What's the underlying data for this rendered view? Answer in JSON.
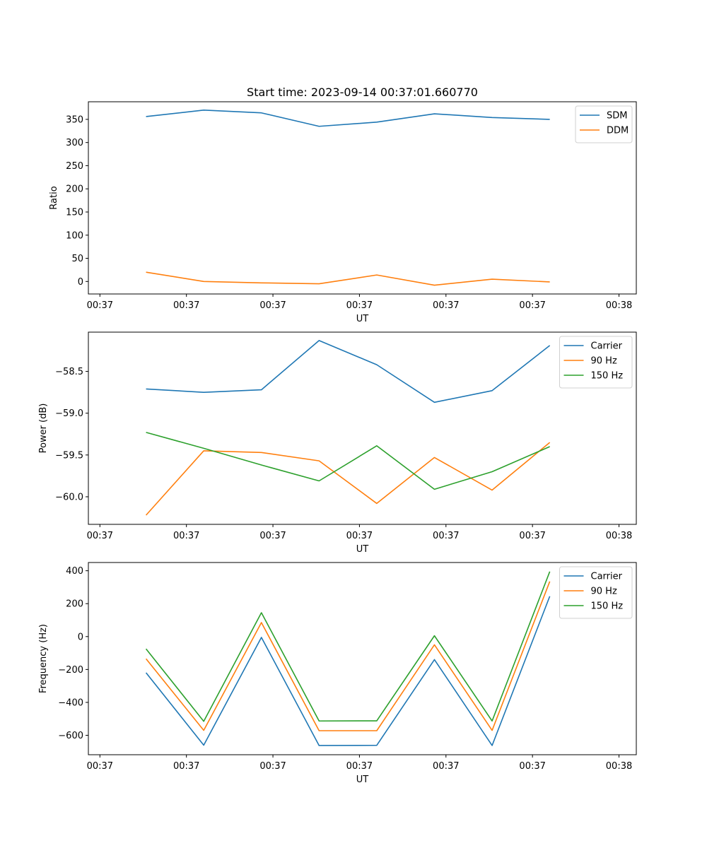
{
  "title": "Start time: 2023-09-14 00:37:01.660770",
  "colors": {
    "blue": "#1f77b4",
    "orange": "#ff7f0e",
    "green": "#2ca02c"
  },
  "chart_data": [
    {
      "type": "line",
      "title": "Start time: 2023-09-14 00:37:01.660770",
      "xlabel": "UT",
      "ylabel": "Ratio",
      "x": [
        1,
        2,
        3,
        4,
        5,
        6,
        7,
        8
      ],
      "xlim": [
        0,
        9.5
      ],
      "xticks": [
        0.2,
        1.7,
        3.2,
        4.7,
        6.2,
        7.7,
        9.2
      ],
      "xtick_labels": [
        "00:37",
        "00:37",
        "00:37",
        "00:37",
        "00:37",
        "00:37",
        "00:38"
      ],
      "ylim": [
        -27,
        388
      ],
      "yticks": [
        0,
        50,
        100,
        150,
        200,
        250,
        300,
        350
      ],
      "ytick_labels": [
        "0",
        "50",
        "100",
        "150",
        "200",
        "250",
        "300",
        "350"
      ],
      "legend": "top-right",
      "series": [
        {
          "name": "SDM",
          "color": "#1f77b4",
          "values": [
            356,
            370,
            364,
            335,
            344,
            362,
            354,
            350
          ]
        },
        {
          "name": "DDM",
          "color": "#ff7f0e",
          "values": [
            20,
            0,
            -3,
            -5,
            14,
            -8,
            5,
            -1
          ]
        }
      ]
    },
    {
      "type": "line",
      "title": "",
      "xlabel": "UT",
      "ylabel": "Power (dB)",
      "x": [
        1,
        2,
        3,
        4,
        5,
        6,
        7,
        8
      ],
      "xlim": [
        0,
        9.5
      ],
      "xticks": [
        0.2,
        1.7,
        3.2,
        4.7,
        6.2,
        7.7,
        9.2
      ],
      "xtick_labels": [
        "00:37",
        "00:37",
        "00:37",
        "00:37",
        "00:37",
        "00:37",
        "00:38"
      ],
      "ylim": [
        -60.33,
        -58.03
      ],
      "yticks": [
        -60.0,
        -59.5,
        -59.0,
        -58.5
      ],
      "ytick_labels": [
        "−60.0",
        "−59.5",
        "−59.0",
        "−58.5"
      ],
      "legend": "top-right",
      "series": [
        {
          "name": "Carrier",
          "color": "#1f77b4",
          "values": [
            -58.71,
            -58.75,
            -58.72,
            -58.13,
            -58.42,
            -58.87,
            -58.73,
            -58.19
          ]
        },
        {
          "name": "90 Hz",
          "color": "#ff7f0e",
          "values": [
            -60.22,
            -59.45,
            -59.47,
            -59.57,
            -60.08,
            -59.53,
            -59.92,
            -59.35
          ]
        },
        {
          "name": "150 Hz",
          "color": "#2ca02c",
          "values": [
            -59.23,
            -59.42,
            -59.62,
            -59.81,
            -59.39,
            -59.91,
            -59.7,
            -59.4
          ]
        }
      ]
    },
    {
      "type": "line",
      "title": "",
      "xlabel": "UT",
      "ylabel": "Frequency (Hz)",
      "x": [
        1,
        2,
        3,
        4,
        5,
        6,
        7,
        8
      ],
      "xlim": [
        0,
        9.5
      ],
      "xticks": [
        0.2,
        1.7,
        3.2,
        4.7,
        6.2,
        7.7,
        9.2
      ],
      "xtick_labels": [
        "00:37",
        "00:37",
        "00:37",
        "00:37",
        "00:37",
        "00:37",
        "00:38"
      ],
      "ylim": [
        -718,
        450
      ],
      "yticks": [
        -600,
        -400,
        -200,
        0,
        200,
        400
      ],
      "ytick_labels": [
        "−600",
        "−400",
        "−200",
        "0",
        "200",
        "400"
      ],
      "legend": "top-right",
      "series": [
        {
          "name": "Carrier",
          "color": "#1f77b4",
          "values": [
            -220,
            -660,
            -5,
            -662,
            -661,
            -140,
            -662,
            245
          ]
        },
        {
          "name": "90 Hz",
          "color": "#ff7f0e",
          "values": [
            -135,
            -570,
            85,
            -572,
            -572,
            -50,
            -570,
            335
          ]
        },
        {
          "name": "150 Hz",
          "color": "#2ca02c",
          "values": [
            -75,
            -515,
            145,
            -513,
            -512,
            5,
            -513,
            395
          ]
        }
      ]
    }
  ]
}
